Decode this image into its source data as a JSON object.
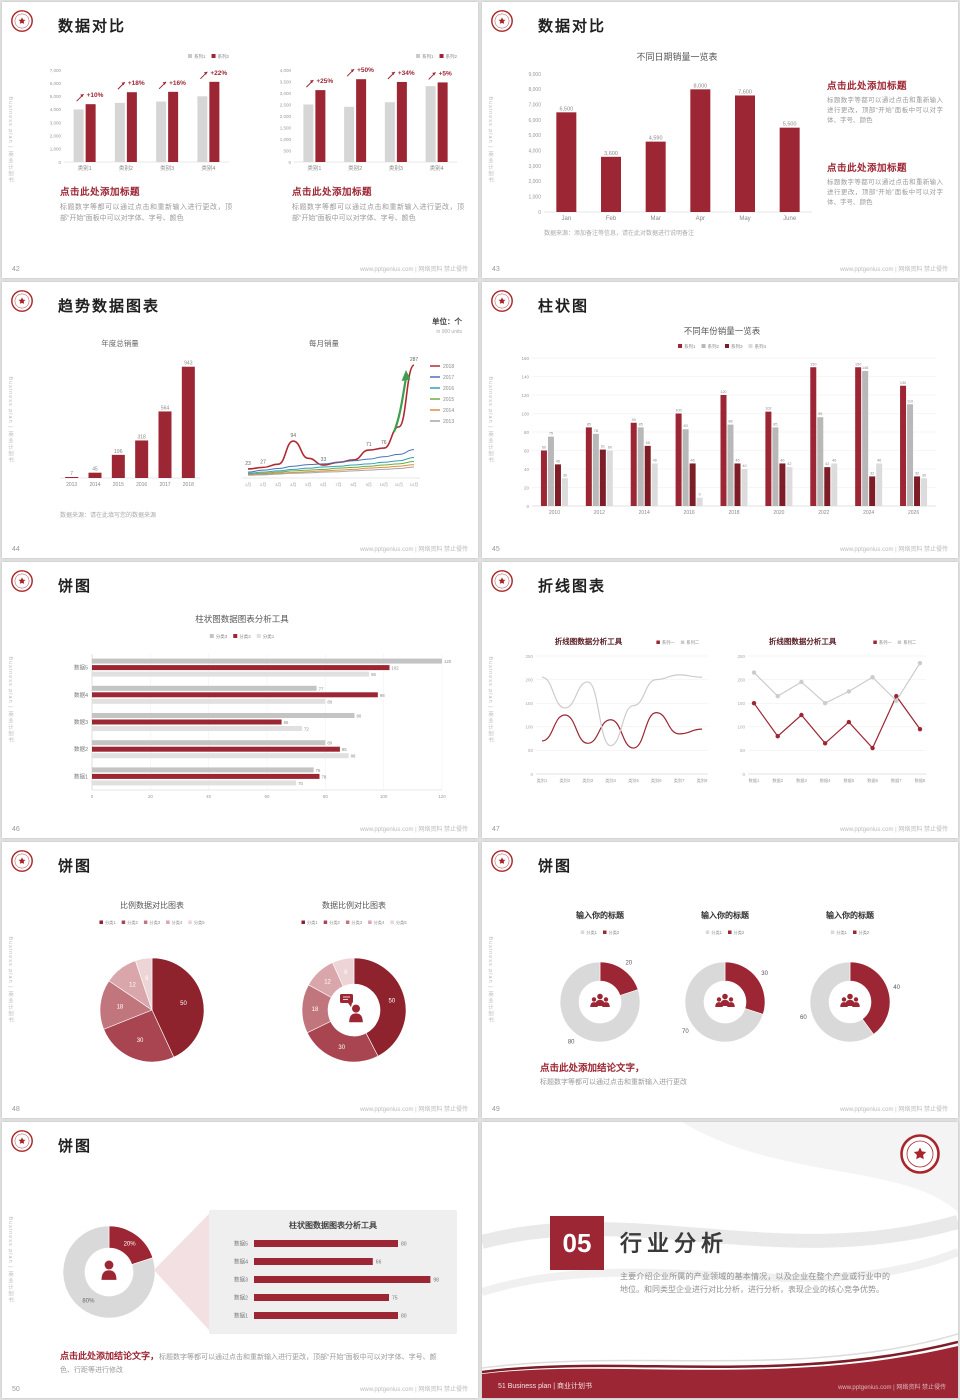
{
  "global": {
    "brand_vertical": "Business plan | 商业计划书",
    "watermark": "www.pptgenius.com | 网络资料 禁止侵传",
    "colors": {
      "accent": "#9c2633",
      "accent_dark": "#7c1d27",
      "gray_bar": "#d6d6d6",
      "text_dark": "#1f1f1f",
      "text_muted": "#8c8c8c"
    }
  },
  "slides": [
    {
      "page": "42",
      "type": "compare-two",
      "title": "数据对比",
      "charts": [
        {
          "legend": [
            "系列1",
            "系列2"
          ],
          "y_ticks": [
            "7,000",
            "6,000",
            "5,000",
            "4,000",
            "3,000",
            "2,000",
            "1,000",
            "0"
          ],
          "ymax": 7000,
          "categories": [
            "类别1",
            "类别2",
            "类别3",
            "类别4"
          ],
          "series1": [
            4000,
            4500,
            4600,
            5000
          ],
          "series2": [
            4400,
            5310,
            5340,
            6100
          ],
          "pct_labels": [
            "+10%",
            "+18%",
            "+16%",
            "+22%"
          ]
        },
        {
          "legend": [
            "系列1",
            "系列2"
          ],
          "y_ticks": [
            "4,000",
            "3,500",
            "3,000",
            "2,500",
            "2,000",
            "1,500",
            "1,000",
            "500",
            "0"
          ],
          "ymax": 4000,
          "categories": [
            "类别1",
            "类别2",
            "类别3",
            "类别4"
          ],
          "series1": [
            2500,
            2400,
            2600,
            3300
          ],
          "series2": [
            3125,
            3600,
            3480,
            3460
          ],
          "pct_labels": [
            "+25%",
            "+50%",
            "+34%",
            "+5%"
          ]
        }
      ],
      "blocks": [
        {
          "heading": "点击此处添加标题",
          "body": "标题数字等都可以通过点击和重新输入进行更改，顶部“开始”面板中可以对字体、字号、颜色"
        },
        {
          "heading": "点击此处添加标题",
          "body": "标题数字等都可以通过点击和重新输入进行更改，顶部“开始”面板中可以对字体、字号、颜色"
        }
      ]
    },
    {
      "page": "43",
      "type": "bar-single",
      "title": "数据对比",
      "chart": {
        "title": "不同日期销量一览表",
        "y_ticks": [
          "9,000",
          "8,000",
          "7,000",
          "6,000",
          "5,000",
          "4,000",
          "3,000",
          "2,000",
          "1,000",
          "0"
        ],
        "ymax": 9000,
        "categories": [
          "Jan",
          "Feb",
          "Mar",
          "Apr",
          "May",
          "June"
        ],
        "values": [
          6500,
          3600,
          4590,
          8000,
          7600,
          5500
        ],
        "labels": [
          "6,500",
          "3,600",
          "4,590",
          "8,000",
          "7,600",
          "5,500"
        ]
      },
      "blocks": [
        {
          "heading": "点击此处添加标题",
          "body": "标题数字等都可以通过点击和重新输入进行更改，顶部“开始”面板中可以对字体、字号、颜色"
        },
        {
          "heading": "点击此处添加标题",
          "body": "标题数字等都可以通过点击和重新输入进行更改，顶部“开始”面板中可以对字体、字号、颜色"
        }
      ],
      "note": "数据来源：添加备注等信息，请在此对数据进行说明备注"
    },
    {
      "page": "44",
      "type": "trend",
      "title": "趋势数据图表",
      "unit_line1": "单位：个",
      "unit_line2": "in 900 units",
      "bar_chart": {
        "title": "年度总销量",
        "categories": [
          "2013",
          "2014",
          "2015",
          "2016",
          "2017",
          "2018"
        ],
        "values": [
          7,
          45,
          196,
          318,
          564,
          943
        ]
      },
      "line_chart": {
        "title": "每月销量",
        "x_labels": [
          "1月",
          "2月",
          "3月",
          "4月",
          "5月",
          "6月",
          "7月",
          "8月",
          "9月",
          "10月",
          "11月",
          "12月"
        ],
        "series": [
          {
            "name": "2018",
            "color": "#b02a33",
            "values": [
              23,
              27,
              35,
              94,
              50,
              33,
              40,
              46,
              71,
              76,
              130,
              287
            ],
            "point_labels": {
              "0": "23",
              "1": "27",
              "3": "94",
              "5": "33",
              "8": "71",
              "9": "76",
              "11": "287"
            }
          },
          {
            "name": "2017",
            "color": "#4a72b8",
            "values": [
              15,
              20,
              24,
              30,
              34,
              36,
              40,
              44,
              48,
              54,
              60,
              72
            ]
          },
          {
            "name": "2016",
            "color": "#31a2ac",
            "values": [
              12,
              15,
              18,
              22,
              25,
              28,
              30,
              33,
              36,
              40,
              44,
              52
            ]
          },
          {
            "name": "2015",
            "color": "#6faa44",
            "values": [
              10,
              12,
              15,
              18,
              20,
              22,
              25,
              27,
              30,
              33,
              36,
              42
            ]
          },
          {
            "name": "2014",
            "color": "#e38d3f",
            "values": [
              8,
              10,
              12,
              14,
              16,
              18,
              20,
              22,
              25,
              27,
              30,
              34
            ]
          },
          {
            "name": "2013",
            "color": "#a5a5a5",
            "values": [
              7,
              8,
              10,
              12,
              13,
              15,
              16,
              18,
              20,
              22,
              24,
              28
            ]
          }
        ]
      },
      "note": "数据来源：请在此填写您的数据来源"
    },
    {
      "page": "45",
      "type": "grouped-bar",
      "title": "柱状图",
      "chart": {
        "title": "不同年份销量一览表",
        "legend": [
          "系列1",
          "系列2",
          "系列3",
          "系列4"
        ],
        "legend_colors": [
          "#9c2633",
          "#b8b8b8",
          "#7c1d27",
          "#dcdcdc"
        ],
        "y_ticks": [
          "160",
          "140",
          "120",
          "100",
          "80",
          "60",
          "40",
          "20",
          "0"
        ],
        "ymax": 160,
        "categories": [
          "2010",
          "2012",
          "2014",
          "2016",
          "2018",
          "2020",
          "2022",
          "2024",
          "2026"
        ],
        "series": [
          {
            "name": "系列1",
            "color": "#9c2633",
            "values": [
              60,
              85,
              90,
              100,
              120,
              102,
              150,
              150,
              130
            ]
          },
          {
            "name": "系列2",
            "color": "#b8b8b8",
            "values": [
              75,
              78,
              85,
              83,
              88,
              85,
              96,
              146,
              110
            ]
          },
          {
            "name": "系列3",
            "color": "#7c1d27",
            "values": [
              45,
              61,
              65,
              46,
              46,
              46,
              42,
              32,
              32
            ]
          },
          {
            "name": "系列4",
            "color": "#dcdcdc",
            "values": [
              30,
              60,
              46,
              9,
              40,
              42,
              46,
              46,
              30
            ]
          }
        ]
      }
    },
    {
      "page": "46",
      "type": "hbar",
      "title": "饼图",
      "chart": {
        "title": "柱状图数据图表分析工具",
        "legend": [
          "分类3",
          "分类2",
          "分类1"
        ],
        "legend_colors": [
          "#c4c4c4",
          "#9c2633",
          "#e0e0e0"
        ],
        "categories": [
          "数据5",
          "数据4",
          "数据3",
          "数据2",
          "数据1"
        ],
        "series": [
          {
            "name": "分类3",
            "color": "#c4c4c4",
            "values": [
              120,
              77,
              90,
              80,
              76
            ]
          },
          {
            "name": "分类2",
            "color": "#9c2633",
            "values": [
              102,
              98,
              65,
              85,
              78
            ]
          },
          {
            "name": "分类1",
            "color": "#e0e0e0",
            "values": [
              95,
              80,
              72,
              88,
              70
            ]
          }
        ],
        "x_ticks": [
          0,
          20,
          40,
          60,
          80,
          100,
          120
        ]
      }
    },
    {
      "page": "47",
      "type": "two-line",
      "title": "折线图表",
      "charts": [
        {
          "title": "折线图数据分析工具",
          "legend": [
            "系列一",
            "系列二"
          ],
          "legend_colors": [
            "#9c2633",
            "#cccccc"
          ],
          "y_ticks": [
            "250",
            "200",
            "150",
            "100",
            "50",
            "0"
          ],
          "x_labels": [
            "类别1",
            "类别2",
            "类别3",
            "类别4",
            "类别5",
            "类别6",
            "类别7",
            "类别8"
          ],
          "smooth": true,
          "markers": false,
          "series": [
            {
              "name": "系列一",
              "color": "#9c2633",
              "values": [
                70,
                125,
                65,
                115,
                55,
                130,
                85,
                95
              ]
            },
            {
              "name": "系列二",
              "color": "#cccccc",
              "values": [
                205,
                140,
                195,
                60,
                145,
                200,
                210,
                205
              ]
            }
          ]
        },
        {
          "title": "折线图数据分析工具",
          "legend": [
            "系列一",
            "系列二"
          ],
          "legend_colors": [
            "#9c2633",
            "#cccccc"
          ],
          "y_ticks": [
            "250",
            "200",
            "150",
            "100",
            "50",
            "0"
          ],
          "x_labels": [
            "数据1",
            "数据2",
            "数据3",
            "数据4",
            "数据5",
            "数据6",
            "数据7",
            "数据8"
          ],
          "smooth": false,
          "markers": true,
          "series": [
            {
              "name": "系列一",
              "color": "#9c2633",
              "values": [
                150,
                80,
                125,
                65,
                110,
                55,
                165,
                95
              ]
            },
            {
              "name": "系列二",
              "color": "#cccccc",
              "values": [
                215,
                165,
                195,
                150,
                175,
                205,
                155,
                235
              ]
            }
          ]
        }
      ]
    },
    {
      "page": "48",
      "type": "two-pie",
      "title": "饼图",
      "pies": [
        {
          "title": "比例数据对比图表",
          "legend": [
            "分类1",
            "分类2",
            "分类3",
            "分类4",
            "分类5"
          ],
          "colors": [
            "#8e222d",
            "#a84550",
            "#c1767e",
            "#d9a6ab",
            "#edd4d6"
          ],
          "values": [
            50,
            30,
            18,
            12,
            6
          ],
          "labels": [
            "50",
            "30",
            "18",
            "12",
            "6"
          ],
          "donut": false
        },
        {
          "title": "数据比例对比图表",
          "legend": [
            "分类1",
            "分类2",
            "分类3",
            "分类4",
            "分类5"
          ],
          "colors": [
            "#8e222d",
            "#a84550",
            "#c1767e",
            "#d9a6ab",
            "#edd4d6"
          ],
          "values": [
            50,
            30,
            18,
            12,
            8
          ],
          "labels": [
            "50",
            "30",
            "18",
            "12",
            "8"
          ],
          "donut": true
        }
      ]
    },
    {
      "page": "49",
      "type": "three-donut",
      "title": "饼图",
      "legend_colors": [
        "#d9d9d9",
        "#9c2633"
      ],
      "donuts": [
        {
          "title": "输入你的标题",
          "legend": [
            "分类1",
            "分类2"
          ],
          "values": [
            80,
            20
          ],
          "labels": [
            "80",
            "20"
          ]
        },
        {
          "title": "输入你的标题",
          "legend": [
            "分类1",
            "分类2"
          ],
          "values": [
            70,
            30
          ],
          "labels": [
            "70",
            "30"
          ]
        },
        {
          "title": "输入你的标题",
          "legend": [
            "分类1",
            "分类2"
          ],
          "values": [
            60,
            40
          ],
          "labels": [
            "60",
            "40"
          ]
        }
      ],
      "conclusion_heading": "点击此处添加结论文字，",
      "conclusion_body": "标题数字等都可以通过点击和重新输入进行更改"
    },
    {
      "page": "50",
      "type": "donut-funnel",
      "title": "饼图",
      "donut": {
        "values": [
          80,
          20
        ],
        "labels": [
          "80%",
          "20%"
        ]
      },
      "panel": {
        "title": "柱状图数据图表分析工具",
        "categories": [
          "数据5",
          "数据4",
          "数据3",
          "数据2",
          "数据1"
        ],
        "values": [
          80,
          66,
          98,
          75,
          80
        ]
      },
      "conclusion_heading": "点击此处添加结论文字，",
      "conclusion_body": "标题数字等都可以通过点击和重新输入进行更改，顶部“开始”面板中可以对字体、字号、颜色、行距等进行修改"
    },
    {
      "page": "51",
      "type": "section",
      "number": "05",
      "title": "行业分析",
      "body": "主要介绍企业所属的产业领域的基本情况，以及企业在整个产业或行业中的地位。和同类型企业进行对比分析，进行分析，表现企业的核心竞争优势。",
      "footer_left": "Business plan | 商业计划书"
    }
  ]
}
